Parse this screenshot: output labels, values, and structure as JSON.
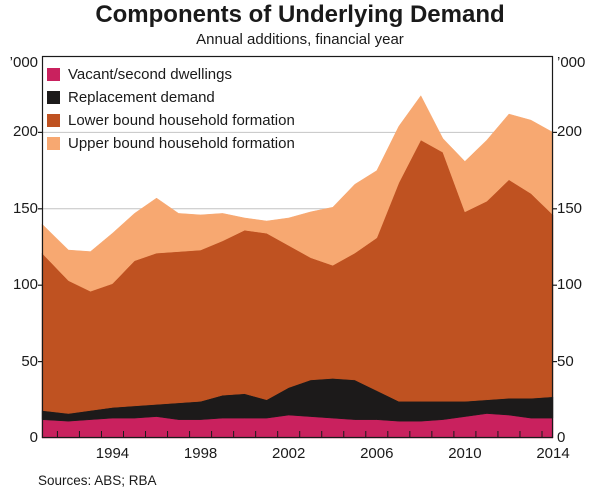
{
  "title": "Components of Underlying Demand",
  "subtitle": "Annual additions, financial year",
  "sources_text": "Sources:  ABS; RBA",
  "chart_data": {
    "type": "area",
    "stacked": true,
    "title": "Components of Underlying Demand",
    "subtitle": "Annual additions, financial year",
    "unit_left": "’000",
    "unit_right": "’000",
    "ylim": [
      0,
      250
    ],
    "yticks": [
      0,
      50,
      100,
      150,
      200
    ],
    "xlim": [
      1990.8,
      2014
    ],
    "x": [
      1991,
      1992,
      1993,
      1994,
      1995,
      1996,
      1997,
      1998,
      1999,
      2000,
      2001,
      2002,
      2003,
      2004,
      2005,
      2006,
      2007,
      2008,
      2009,
      2010,
      2011,
      2012,
      2013,
      2014
    ],
    "xticks_labeled": [
      1994,
      1998,
      2002,
      2006,
      2010,
      2014
    ],
    "grid": "horizontal",
    "legend_position": "top-left",
    "series": [
      {
        "name": "Vacant/second dwellings",
        "color": "#c9215e",
        "values": [
          12,
          11,
          12,
          13,
          13,
          14,
          12,
          12,
          13,
          13,
          13,
          15,
          14,
          13,
          12,
          12,
          11,
          11,
          12,
          14,
          16,
          15,
          13,
          13
        ]
      },
      {
        "name": "Replacement demand",
        "color": "#1c1a1a",
        "values": [
          6,
          5,
          6,
          7,
          8,
          8,
          11,
          12,
          15,
          16,
          12,
          18,
          24,
          26,
          26,
          19,
          13,
          13,
          12,
          10,
          9,
          11,
          13,
          14
        ]
      },
      {
        "name": "Lower bound household formation",
        "color": "#bf5221",
        "values": [
          103,
          87,
          78,
          81,
          95,
          99,
          99,
          99,
          101,
          107,
          109,
          93,
          80,
          74,
          83,
          100,
          143,
          171,
          163,
          124,
          130,
          143,
          134,
          119
        ]
      },
      {
        "name": "Upper bound household formation",
        "color": "#f7a871",
        "values": [
          19,
          20,
          26,
          33,
          31,
          36,
          25,
          23,
          18,
          8,
          8,
          18,
          30,
          38,
          45,
          44,
          37,
          29,
          9,
          33,
          40,
          43,
          48,
          54
        ]
      }
    ]
  }
}
